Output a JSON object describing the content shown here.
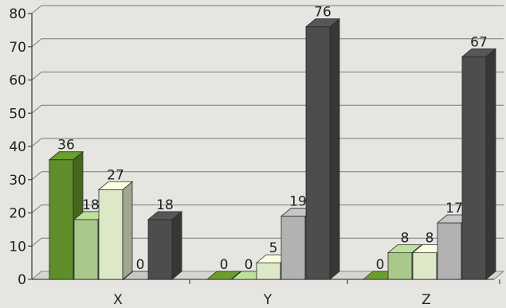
{
  "chart_data": {
    "type": "bar",
    "categories": [
      "X",
      "Y",
      "Z"
    ],
    "series": [
      {
        "values": [
          36,
          0,
          0
        ],
        "color": "#5f8e2a"
      },
      {
        "values": [
          18,
          0,
          8
        ],
        "color": "#a9c88a"
      },
      {
        "values": [
          27,
          5,
          8
        ],
        "color": "#dde8c9"
      },
      {
        "values": [
          0,
          19,
          17
        ],
        "color": "#b2b2b2"
      },
      {
        "values": [
          18,
          76,
          67
        ],
        "color": "#4d4d4d"
      }
    ],
    "data_labels": [
      [
        "36",
        "18",
        "27",
        "0",
        "18"
      ],
      [
        "0",
        "0",
        "5",
        "19",
        "76"
      ],
      [
        "0",
        "8",
        "8",
        "17",
        "67"
      ]
    ],
    "yticks": [
      "0",
      "10",
      "20",
      "30",
      "40",
      "50",
      "60",
      "70",
      "80"
    ],
    "ylim": [
      0,
      80
    ],
    "grid": true,
    "three_d": true
  }
}
